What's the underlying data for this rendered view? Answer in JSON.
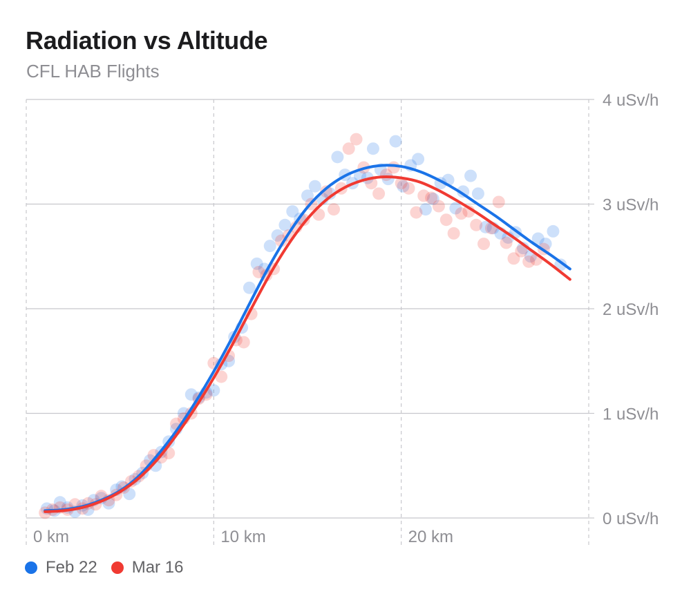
{
  "title": "Radiation vs Altitude",
  "subtitle": "CFL HAB Flights",
  "colors": {
    "feb": "#1a73e8",
    "mar": "#f03a32",
    "grid": "#c7c7cc",
    "label": "#8e8e93"
  },
  "chart_data": {
    "type": "scatter",
    "title": "Radiation vs Altitude",
    "subtitle": "CFL HAB Flights",
    "xlim": [
      0,
      30
    ],
    "ylim": [
      0,
      4
    ],
    "x_ticks": [
      {
        "value": 0,
        "label": "0 km"
      },
      {
        "value": 10,
        "label": "10 km"
      },
      {
        "value": 20,
        "label": "20 km"
      }
    ],
    "y_ticks": [
      {
        "value": 0,
        "label": "0 uSv/h"
      },
      {
        "value": 1,
        "label": "1 uSv/h"
      },
      {
        "value": 2,
        "label": "2 uSv/h"
      },
      {
        "value": 3,
        "label": "3 uSv/h"
      },
      {
        "value": 4,
        "label": "4 uSv/h"
      }
    ],
    "grid": true,
    "legend_position": "bottom-left",
    "series": [
      {
        "name": "Feb 22",
        "color": "#1a73e8",
        "fit": [
          [
            1.0,
            0.07
          ],
          [
            2.0,
            0.08
          ],
          [
            3.0,
            0.11
          ],
          [
            4.0,
            0.17
          ],
          [
            5.0,
            0.26
          ],
          [
            6.0,
            0.4
          ],
          [
            7.0,
            0.6
          ],
          [
            8.0,
            0.83
          ],
          [
            9.0,
            1.1
          ],
          [
            10.0,
            1.4
          ],
          [
            11.0,
            1.73
          ],
          [
            12.0,
            2.08
          ],
          [
            13.0,
            2.42
          ],
          [
            14.0,
            2.72
          ],
          [
            15.0,
            2.97
          ],
          [
            16.0,
            3.15
          ],
          [
            17.0,
            3.27
          ],
          [
            18.0,
            3.34
          ],
          [
            19.0,
            3.37
          ],
          [
            20.0,
            3.36
          ],
          [
            21.0,
            3.31
          ],
          [
            22.0,
            3.23
          ],
          [
            23.0,
            3.13
          ],
          [
            24.0,
            3.01
          ],
          [
            25.0,
            2.89
          ],
          [
            26.0,
            2.76
          ],
          [
            27.0,
            2.63
          ],
          [
            28.0,
            2.51
          ],
          [
            29.0,
            2.38
          ]
        ],
        "points": [
          [
            1.1,
            0.09
          ],
          [
            1.5,
            0.07
          ],
          [
            1.8,
            0.15
          ],
          [
            2.2,
            0.1
          ],
          [
            2.6,
            0.06
          ],
          [
            3.0,
            0.12
          ],
          [
            3.3,
            0.08
          ],
          [
            3.6,
            0.17
          ],
          [
            4.0,
            0.19
          ],
          [
            4.4,
            0.14
          ],
          [
            4.8,
            0.27
          ],
          [
            5.1,
            0.3
          ],
          [
            5.5,
            0.23
          ],
          [
            5.8,
            0.37
          ],
          [
            6.2,
            0.43
          ],
          [
            6.6,
            0.55
          ],
          [
            6.9,
            0.5
          ],
          [
            7.2,
            0.63
          ],
          [
            7.6,
            0.73
          ],
          [
            8.0,
            0.85
          ],
          [
            8.4,
            1.0
          ],
          [
            8.8,
            1.18
          ],
          [
            9.2,
            1.15
          ],
          [
            9.6,
            1.2
          ],
          [
            10.0,
            1.22
          ],
          [
            10.4,
            1.47
          ],
          [
            10.8,
            1.5
          ],
          [
            11.1,
            1.73
          ],
          [
            11.5,
            1.82
          ],
          [
            11.9,
            2.2
          ],
          [
            12.3,
            2.43
          ],
          [
            12.7,
            2.38
          ],
          [
            13.0,
            2.6
          ],
          [
            13.4,
            2.7
          ],
          [
            13.8,
            2.8
          ],
          [
            14.2,
            2.93
          ],
          [
            14.6,
            2.86
          ],
          [
            15.0,
            3.08
          ],
          [
            15.4,
            3.17
          ],
          [
            15.8,
            3.05
          ],
          [
            16.2,
            3.1
          ],
          [
            16.6,
            3.45
          ],
          [
            17.0,
            3.28
          ],
          [
            17.4,
            3.2
          ],
          [
            17.8,
            3.27
          ],
          [
            18.2,
            3.25
          ],
          [
            18.5,
            3.53
          ],
          [
            18.9,
            3.33
          ],
          [
            19.3,
            3.24
          ],
          [
            19.7,
            3.6
          ],
          [
            20.1,
            3.17
          ],
          [
            20.5,
            3.37
          ],
          [
            20.9,
            3.43
          ],
          [
            21.3,
            2.95
          ],
          [
            21.7,
            3.05
          ],
          [
            22.1,
            3.2
          ],
          [
            22.5,
            3.23
          ],
          [
            22.9,
            2.96
          ],
          [
            23.3,
            3.12
          ],
          [
            23.7,
            3.27
          ],
          [
            24.1,
            3.1
          ],
          [
            24.5,
            2.78
          ],
          [
            24.9,
            2.77
          ],
          [
            25.3,
            2.72
          ],
          [
            25.7,
            2.68
          ],
          [
            26.1,
            2.73
          ],
          [
            26.5,
            2.58
          ],
          [
            26.9,
            2.5
          ],
          [
            27.3,
            2.67
          ],
          [
            27.7,
            2.62
          ],
          [
            28.1,
            2.74
          ],
          [
            28.5,
            2.42
          ]
        ]
      },
      {
        "name": "Mar 16",
        "color": "#f03a32",
        "fit": [
          [
            1.0,
            0.06
          ],
          [
            2.0,
            0.07
          ],
          [
            3.0,
            0.1
          ],
          [
            4.0,
            0.16
          ],
          [
            5.0,
            0.25
          ],
          [
            6.0,
            0.38
          ],
          [
            7.0,
            0.56
          ],
          [
            8.0,
            0.79
          ],
          [
            9.0,
            1.05
          ],
          [
            10.0,
            1.34
          ],
          [
            11.0,
            1.66
          ],
          [
            12.0,
            2.0
          ],
          [
            13.0,
            2.33
          ],
          [
            14.0,
            2.62
          ],
          [
            15.0,
            2.86
          ],
          [
            16.0,
            3.04
          ],
          [
            17.0,
            3.16
          ],
          [
            18.0,
            3.23
          ],
          [
            19.0,
            3.26
          ],
          [
            20.0,
            3.25
          ],
          [
            21.0,
            3.21
          ],
          [
            22.0,
            3.13
          ],
          [
            23.0,
            3.03
          ],
          [
            24.0,
            2.92
          ],
          [
            25.0,
            2.8
          ],
          [
            26.0,
            2.68
          ],
          [
            27.0,
            2.55
          ],
          [
            28.0,
            2.42
          ],
          [
            29.0,
            2.28
          ]
        ],
        "points": [
          [
            1.0,
            0.05
          ],
          [
            1.4,
            0.08
          ],
          [
            1.8,
            0.1
          ],
          [
            2.2,
            0.08
          ],
          [
            2.6,
            0.13
          ],
          [
            3.0,
            0.09
          ],
          [
            3.3,
            0.14
          ],
          [
            3.7,
            0.13
          ],
          [
            4.0,
            0.21
          ],
          [
            4.4,
            0.17
          ],
          [
            4.8,
            0.22
          ],
          [
            5.2,
            0.29
          ],
          [
            5.6,
            0.35
          ],
          [
            6.0,
            0.4
          ],
          [
            6.4,
            0.5
          ],
          [
            6.8,
            0.6
          ],
          [
            7.2,
            0.58
          ],
          [
            7.6,
            0.62
          ],
          [
            8.0,
            0.9
          ],
          [
            8.4,
            0.95
          ],
          [
            8.8,
            1.0
          ],
          [
            9.2,
            1.14
          ],
          [
            9.6,
            1.18
          ],
          [
            10.0,
            1.48
          ],
          [
            10.4,
            1.35
          ],
          [
            10.8,
            1.55
          ],
          [
            11.2,
            1.7
          ],
          [
            11.6,
            1.68
          ],
          [
            12.0,
            1.95
          ],
          [
            12.4,
            2.35
          ],
          [
            12.8,
            2.32
          ],
          [
            13.2,
            2.38
          ],
          [
            13.6,
            2.65
          ],
          [
            14.0,
            2.7
          ],
          [
            14.4,
            2.78
          ],
          [
            14.8,
            2.85
          ],
          [
            15.2,
            3.0
          ],
          [
            15.6,
            2.9
          ],
          [
            16.0,
            3.12
          ],
          [
            16.4,
            2.95
          ],
          [
            16.8,
            3.15
          ],
          [
            17.2,
            3.53
          ],
          [
            17.6,
            3.62
          ],
          [
            18.0,
            3.35
          ],
          [
            18.4,
            3.2
          ],
          [
            18.8,
            3.1
          ],
          [
            19.2,
            3.28
          ],
          [
            19.6,
            3.35
          ],
          [
            20.0,
            3.2
          ],
          [
            20.4,
            3.15
          ],
          [
            20.8,
            2.92
          ],
          [
            21.2,
            3.08
          ],
          [
            21.6,
            3.06
          ],
          [
            22.0,
            2.98
          ],
          [
            22.4,
            2.85
          ],
          [
            22.8,
            2.72
          ],
          [
            23.2,
            2.91
          ],
          [
            23.6,
            2.93
          ],
          [
            24.0,
            2.8
          ],
          [
            24.4,
            2.62
          ],
          [
            24.8,
            2.77
          ],
          [
            25.2,
            3.02
          ],
          [
            25.6,
            2.63
          ],
          [
            26.0,
            2.48
          ],
          [
            26.4,
            2.55
          ],
          [
            26.8,
            2.45
          ],
          [
            27.2,
            2.47
          ],
          [
            27.6,
            2.57
          ]
        ]
      }
    ]
  },
  "legend": [
    {
      "label": "Feb 22",
      "color": "#1a73e8"
    },
    {
      "label": "Mar 16",
      "color": "#f03a32"
    }
  ]
}
